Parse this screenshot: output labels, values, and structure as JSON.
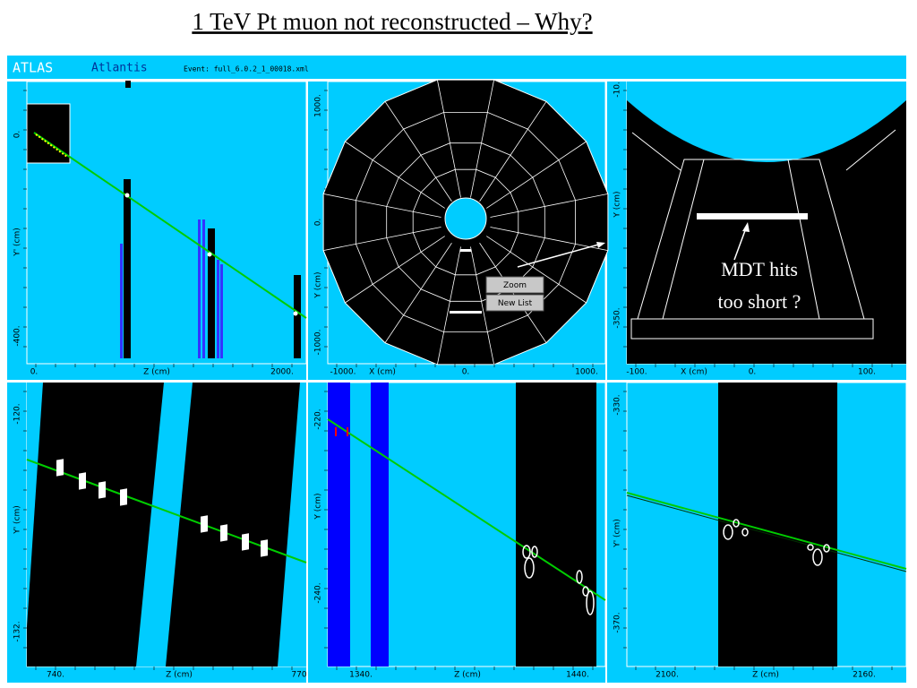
{
  "slide_title": "1 TeV Pt muon not reconstructed – Why?",
  "app_header": {
    "experiment": "ATLAS",
    "program": "Atlantis",
    "event": "Event: full_6.0.2_1_00018.xml"
  },
  "panels": [
    {
      "y_axis_label": "Y' (cm)",
      "x_axis_label": "Z (cm)",
      "y_ticks": [
        "0.",
        "-400."
      ],
      "x_ticks": [
        "0.",
        "2000."
      ]
    },
    {
      "y_axis_label": "Y (cm)",
      "x_axis_label": "X (cm)",
      "y_ticks": [
        "1000.",
        "0.",
        "-1000."
      ],
      "x_ticks": [
        "-1000.",
        "0.",
        "1000."
      ],
      "buttons": [
        "Zoom",
        "New List"
      ]
    },
    {
      "y_axis_label": "Y (cm)",
      "x_axis_label": "X (cm)",
      "y_ticks": [
        "-10.",
        "-350."
      ],
      "x_ticks": [
        "-100.",
        "0.",
        "100."
      ],
      "annotation": [
        "MDT hits",
        "too short ?"
      ]
    },
    {
      "y_axis_label": "Y' (cm)",
      "x_axis_label": "Z (cm)",
      "y_ticks": [
        "-120.",
        "-132."
      ],
      "x_ticks": [
        "740.",
        "770"
      ]
    },
    {
      "y_axis_label": "Y (cm)",
      "x_axis_label": "Z (cm)",
      "y_ticks": [
        "-220.",
        "-240."
      ],
      "x_ticks": [
        "1340.",
        "1440."
      ]
    },
    {
      "y_axis_label": "Y' (cm)",
      "x_axis_label": "Z (cm)",
      "y_ticks": [
        "-330.",
        "-370."
      ],
      "x_ticks": [
        "2100.",
        "2160."
      ]
    }
  ]
}
